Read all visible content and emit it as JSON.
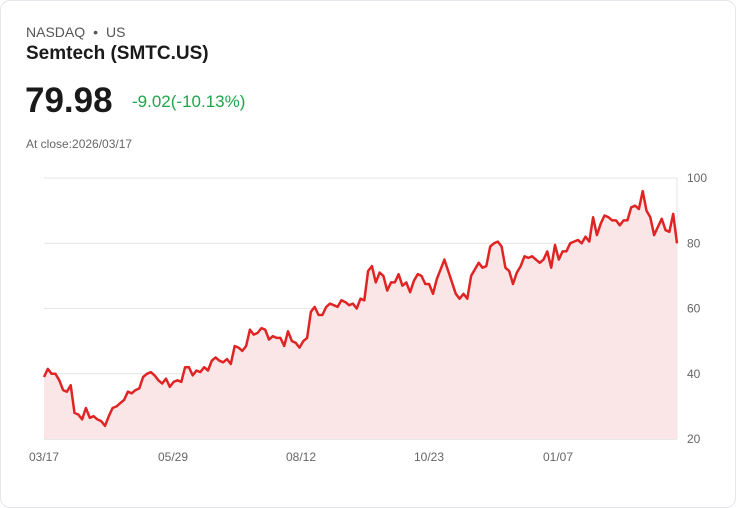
{
  "header": {
    "exchange": "NASDAQ",
    "separator": "•",
    "region": "US",
    "title": "Semtech (SMTC.US)",
    "price": "79.98",
    "change": "-9.02(-10.13%)",
    "at_close": "At close:2026/03/17"
  },
  "colors": {
    "line": "#e02424",
    "fill": "#fae6e6",
    "positive": "#1fa64a"
  },
  "chart_data": {
    "type": "area",
    "title": "Semtech (SMTC.US)",
    "xlabel": "",
    "ylabel": "",
    "ylim": [
      20,
      100
    ],
    "yticks": [
      20,
      40,
      60,
      80,
      100
    ],
    "xtick_labels": [
      "03/17",
      "05/29",
      "08/12",
      "10/23",
      "01/07"
    ],
    "grid": true,
    "values": [
      39,
      41.5,
      40,
      40,
      38,
      35,
      34.5,
      36.5,
      28,
      27.5,
      26,
      29.5,
      26.5,
      27,
      26,
      25.5,
      24,
      27,
      29.5,
      30,
      31,
      32,
      34.5,
      34,
      35,
      35.5,
      39,
      40,
      40.5,
      39.5,
      38,
      37,
      38.5,
      36,
      37.5,
      38,
      37.5,
      42,
      42,
      39.5,
      41,
      40.5,
      42,
      41,
      44,
      45,
      44,
      43.5,
      44.5,
      43,
      48.5,
      48,
      47,
      48.5,
      53.5,
      52,
      52.5,
      54,
      53.5,
      50.5,
      51.5,
      51,
      51,
      48.5,
      53,
      50,
      49.5,
      48,
      50,
      51,
      59,
      60.5,
      58,
      58,
      60.5,
      61.5,
      61,
      60.5,
      62.5,
      62,
      61,
      61.5,
      60,
      63,
      62.5,
      71.5,
      73,
      68,
      71,
      70,
      65.5,
      68,
      68,
      70.5,
      67,
      68,
      65,
      68.5,
      70.5,
      70,
      67.5,
      67.5,
      64.5,
      69,
      72,
      75,
      71.5,
      68,
      64.5,
      63,
      64.5,
      63,
      70,
      72,
      74,
      72.5,
      73,
      79,
      80,
      80.5,
      79,
      72.5,
      71.5,
      67.5,
      71,
      73,
      76,
      75.5,
      76,
      75,
      74,
      75,
      77.5,
      72.5,
      79.5,
      75,
      77.5,
      77.5,
      80,
      80.5,
      81,
      80,
      82,
      80.5,
      88,
      82.5,
      86,
      88.5,
      88,
      87,
      87,
      85.5,
      87,
      87,
      91,
      91.5,
      90.5,
      96,
      90,
      88,
      82.5,
      85,
      87.5,
      84,
      83.5,
      89,
      80
    ]
  }
}
